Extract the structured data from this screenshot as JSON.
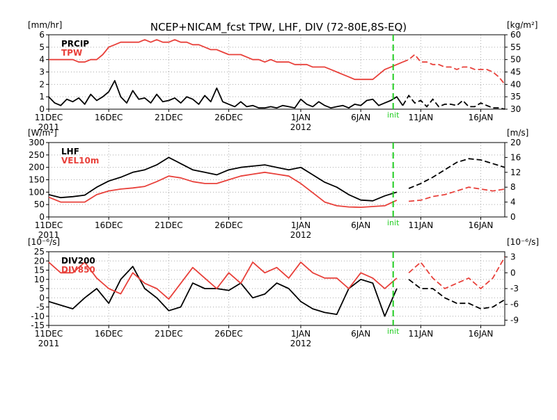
{
  "title": "NCEP+NICAM_fcst TPW, LHF, DIV (72-80E,8S-EQ)",
  "init_label": "init",
  "colors": {
    "black": "#000000",
    "red": "#e8403a",
    "init": "#22cc22",
    "grid": "#aaaaaa"
  },
  "x_axis": {
    "day_min": 0,
    "day_max": 38,
    "init_day": 28.7,
    "forecast_start_day": 29.5,
    "ticks": [
      {
        "day": 0,
        "label": "11DEC",
        "sub": "2011"
      },
      {
        "day": 5,
        "label": "16DEC",
        "sub": ""
      },
      {
        "day": 10,
        "label": "21DEC",
        "sub": ""
      },
      {
        "day": 15,
        "label": "26DEC",
        "sub": ""
      },
      {
        "day": 21,
        "label": "1JAN",
        "sub": "2012"
      },
      {
        "day": 26,
        "label": "6JAN",
        "sub": ""
      },
      {
        "day": 31,
        "label": "11JAN",
        "sub": ""
      },
      {
        "day": 36,
        "label": "16JAN",
        "sub": ""
      }
    ]
  },
  "chart_data": [
    {
      "type": "line",
      "left_unit": "[mm/hr]",
      "right_unit": "[kg/m²]",
      "left_ylim": [
        0,
        6
      ],
      "right_ylim": [
        30,
        60
      ],
      "left_ticks": [
        "0",
        "1",
        "2",
        "3",
        "4",
        "5",
        "6"
      ],
      "right_ticks": [
        "30",
        "35",
        "40",
        "45",
        "50",
        "55",
        "60"
      ],
      "series": [
        {
          "name": "PRCIP",
          "axis": "left",
          "color": "#000000",
          "x": [
            0,
            0.5,
            1,
            1.5,
            2,
            2.5,
            3,
            3.5,
            4,
            4.5,
            5,
            5.5,
            6,
            6.5,
            7,
            7.5,
            8,
            8.5,
            9,
            9.5,
            10,
            10.5,
            11,
            11.5,
            12,
            12.5,
            13,
            13.5,
            14,
            14.5,
            15,
            15.5,
            16,
            16.5,
            17,
            17.5,
            18,
            18.5,
            19,
            19.5,
            20,
            20.5,
            21,
            21.5,
            22,
            22.5,
            23,
            23.5,
            24,
            24.5,
            25,
            25.5,
            26,
            26.5,
            27,
            27.5,
            28,
            28.5,
            29,
            29.5,
            30,
            30.5,
            31,
            31.5,
            32,
            32.5,
            33,
            33.5,
            34,
            34.5,
            35,
            35.5,
            36,
            36.5,
            37,
            37.5,
            38
          ],
          "y": [
            1.0,
            0.5,
            0.3,
            0.8,
            0.6,
            0.9,
            0.4,
            1.2,
            0.7,
            1.0,
            1.4,
            2.3,
            1.0,
            0.5,
            1.5,
            0.8,
            0.9,
            0.5,
            1.2,
            0.6,
            0.7,
            0.9,
            0.5,
            1.0,
            0.8,
            0.4,
            1.1,
            0.6,
            1.7,
            0.6,
            0.4,
            0.2,
            0.6,
            0.2,
            0.3,
            0.1,
            0.1,
            0.2,
            0.1,
            0.3,
            0.2,
            0.1,
            0.8,
            0.4,
            0.2,
            0.6,
            0.3,
            0.1,
            0.2,
            0.3,
            0.1,
            0.4,
            0.3,
            0.7,
            0.8,
            0.3,
            0.5,
            0.7,
            1.0,
            0.3,
            1.1,
            0.5,
            0.7,
            0.2,
            0.8,
            0.2,
            0.4,
            0.4,
            0.3,
            0.7,
            0.2,
            0.2,
            0.5,
            0.3,
            0.1,
            0.1,
            0.0
          ]
        },
        {
          "name": "TPW",
          "axis": "right",
          "color": "#e8403a",
          "x": [
            0,
            0.5,
            1,
            1.5,
            2,
            2.5,
            3,
            3.5,
            4,
            4.5,
            5,
            5.5,
            6,
            6.5,
            7,
            7.5,
            8,
            8.5,
            9,
            9.5,
            10,
            10.5,
            11,
            11.5,
            12,
            12.5,
            13,
            13.5,
            14,
            14.5,
            15,
            15.5,
            16,
            16.5,
            17,
            17.5,
            18,
            18.5,
            19,
            19.5,
            20,
            20.5,
            21,
            21.5,
            22,
            22.5,
            23,
            23.5,
            24,
            24.5,
            25,
            25.5,
            26,
            26.5,
            27,
            27.5,
            28,
            28.5,
            29,
            29.5,
            30,
            30.5,
            31,
            31.5,
            32,
            32.5,
            33,
            33.5,
            34,
            34.5,
            35,
            35.5,
            36,
            36.5,
            37,
            37.5,
            38
          ],
          "y": [
            50,
            50,
            50,
            50,
            50,
            49,
            49,
            50,
            50,
            52,
            55,
            56,
            57,
            57,
            57,
            57,
            58,
            57,
            58,
            57,
            57,
            58,
            57,
            57,
            56,
            56,
            55,
            54,
            54,
            53,
            52,
            52,
            52,
            51,
            50,
            50,
            49,
            50,
            49,
            49,
            49,
            48,
            48,
            48,
            47,
            47,
            47,
            46,
            45,
            44,
            43,
            42,
            42,
            42,
            42,
            44,
            46,
            47,
            48,
            49,
            50,
            52,
            49,
            49,
            48,
            48,
            47,
            47,
            46,
            47,
            47,
            46,
            46,
            46,
            45,
            43,
            40
          ]
        }
      ]
    },
    {
      "type": "line",
      "left_unit": "[W/m²]",
      "right_unit": "[m/s]",
      "left_ylim": [
        0,
        300
      ],
      "right_ylim": [
        0,
        20
      ],
      "left_ticks": [
        "0",
        "50",
        "100",
        "150",
        "200",
        "250",
        "300"
      ],
      "right_ticks": [
        "0",
        "4",
        "8",
        "12",
        "16",
        "20"
      ],
      "series": [
        {
          "name": "LHF",
          "axis": "left",
          "color": "#000000",
          "x": [
            0,
            1,
            2,
            3,
            4,
            5,
            6,
            7,
            8,
            9,
            10,
            11,
            12,
            13,
            14,
            15,
            16,
            17,
            18,
            19,
            20,
            21,
            22,
            23,
            24,
            25,
            26,
            27,
            28,
            29,
            30,
            31,
            32,
            33,
            34,
            35,
            36,
            37,
            38
          ],
          "y": [
            90,
            78,
            82,
            88,
            120,
            145,
            160,
            180,
            190,
            210,
            240,
            215,
            190,
            180,
            170,
            190,
            200,
            205,
            210,
            200,
            190,
            200,
            170,
            140,
            120,
            90,
            68,
            65,
            85,
            100,
            115,
            135,
            160,
            190,
            220,
            235,
            230,
            215,
            200
          ]
        },
        {
          "name": "VEL10m",
          "axis": "right",
          "color": "#e8403a",
          "x": [
            0,
            1,
            2,
            3,
            4,
            5,
            6,
            7,
            8,
            9,
            10,
            11,
            12,
            13,
            14,
            15,
            16,
            17,
            18,
            19,
            20,
            21,
            22,
            23,
            24,
            25,
            26,
            27,
            28,
            29,
            30,
            31,
            32,
            33,
            34,
            35,
            36,
            37,
            38
          ],
          "y": [
            5.3,
            4.0,
            4.0,
            4.0,
            6.0,
            7.0,
            7.5,
            7.8,
            8.2,
            9.5,
            11.0,
            10.5,
            9.5,
            9.0,
            9.0,
            10.0,
            11.0,
            11.5,
            12.0,
            11.5,
            11.0,
            9.0,
            6.5,
            4.0,
            3.0,
            2.7,
            2.6,
            2.8,
            3.0,
            4.5,
            4.2,
            4.5,
            5.5,
            6.0,
            7.0,
            8.0,
            7.5,
            7.0,
            7.5
          ]
        }
      ]
    },
    {
      "type": "line",
      "left_unit": "[10⁻⁶/s]",
      "right_unit": "[10⁻⁶/s]",
      "left_ylim": [
        -15,
        25
      ],
      "right_ylim": [
        -10,
        4
      ],
      "left_ticks": [
        "-15",
        "-10",
        "-5",
        "0",
        "5",
        "10",
        "15",
        "20",
        "25"
      ],
      "right_ticks": [
        "-9",
        "-6",
        "-3",
        "0",
        "3"
      ],
      "series": [
        {
          "name": "DIV200",
          "axis": "left",
          "color": "#000000",
          "x": [
            0,
            1,
            2,
            3,
            4,
            5,
            6,
            7,
            8,
            9,
            10,
            11,
            12,
            13,
            14,
            15,
            16,
            17,
            18,
            19,
            20,
            21,
            22,
            23,
            24,
            25,
            26,
            27,
            28,
            29,
            30,
            31,
            32,
            33,
            34,
            35,
            36,
            37,
            38
          ],
          "y": [
            -2,
            -4,
            -6,
            0,
            5,
            -3,
            10,
            17,
            5,
            0,
            -7,
            -5,
            8,
            5,
            5,
            4,
            8,
            0,
            2,
            8,
            5,
            -2,
            -6,
            -8,
            -9,
            5,
            10,
            8,
            -10,
            5,
            10,
            5,
            5,
            0,
            -3,
            -3,
            -6,
            -5,
            -1
          ]
        },
        {
          "name": "DIV850",
          "axis": "right",
          "color": "#e8403a",
          "x": [
            0,
            1,
            2,
            3,
            4,
            5,
            6,
            7,
            8,
            9,
            10,
            11,
            12,
            13,
            14,
            15,
            16,
            17,
            18,
            19,
            20,
            21,
            22,
            23,
            24,
            25,
            26,
            27,
            28,
            29,
            30,
            31,
            32,
            33,
            34,
            35,
            36,
            37,
            38
          ],
          "y": [
            2,
            0,
            0,
            2,
            -1,
            -3,
            -4,
            0,
            -2,
            -3,
            -5,
            -2,
            1,
            -1,
            -3,
            0,
            -2,
            2,
            0,
            1,
            -1,
            2,
            0,
            -1,
            -1,
            -3,
            0,
            -1,
            -3,
            -1,
            0,
            2,
            -1,
            -3,
            -2,
            -1,
            -3,
            -1,
            3
          ]
        }
      ]
    }
  ]
}
